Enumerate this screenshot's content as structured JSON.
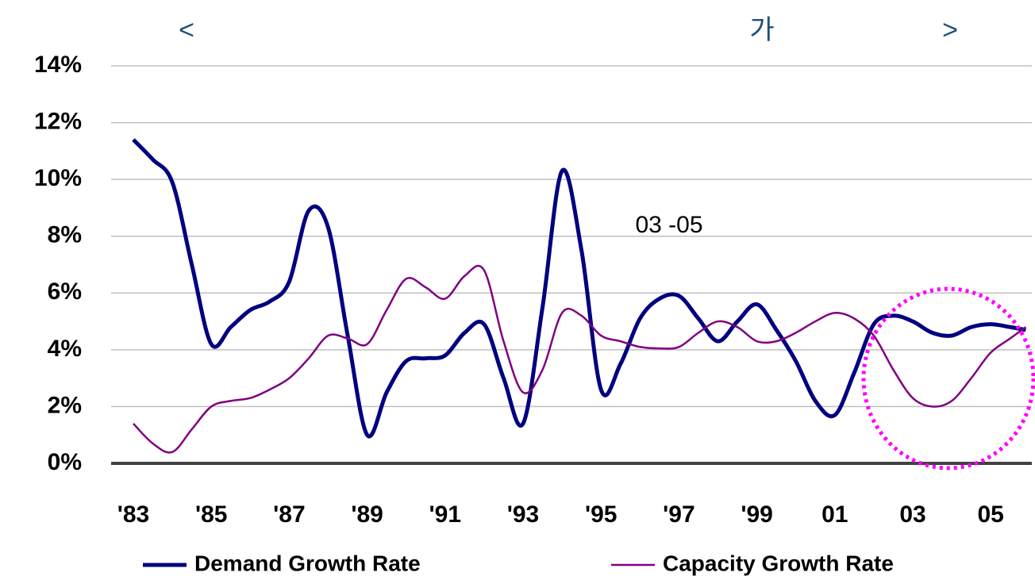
{
  "chart_data": {
    "type": "line",
    "title_parts": [
      "<",
      "가",
      ">"
    ],
    "annotation": "03 -05",
    "x": [
      1983,
      1983.5,
      1984,
      1984.5,
      1985,
      1985.5,
      1986,
      1986.5,
      1987,
      1987.5,
      1988,
      1988.5,
      1989,
      1989.5,
      1990,
      1990.5,
      1991,
      1991.5,
      1992,
      1992.5,
      1993,
      1993.5,
      1994,
      1994.5,
      1995,
      1995.5,
      1996,
      1996.5,
      1997,
      1997.5,
      1998,
      1998.5,
      1999,
      1999.5,
      2000,
      2000.5,
      2001,
      2001.5,
      2002,
      2002.5,
      2003,
      2003.5,
      2004,
      2004.5,
      2005,
      2005.5,
      2005.9
    ],
    "series": [
      {
        "name": "Demand Growth Rate",
        "color": "#000080",
        "values": [
          11.4,
          10.7,
          9.9,
          7.0,
          4.2,
          4.8,
          5.4,
          5.7,
          6.4,
          8.9,
          8.3,
          4.5,
          1.0,
          2.5,
          3.6,
          3.7,
          3.8,
          4.6,
          4.9,
          3.0,
          1.4,
          5.5,
          10.3,
          7.5,
          2.6,
          3.5,
          5.1,
          5.8,
          5.9,
          5.1,
          4.3,
          5.0,
          5.6,
          4.7,
          3.6,
          2.2,
          1.7,
          3.2,
          4.9,
          5.2,
          5.0,
          4.6,
          4.5,
          4.8,
          4.9,
          4.8,
          4.7
        ]
      },
      {
        "name": "Capacity Growth Rate",
        "color": "#800080",
        "values": [
          1.4,
          0.7,
          0.4,
          1.2,
          2.0,
          2.2,
          2.3,
          2.6,
          3.0,
          3.7,
          4.5,
          4.4,
          4.2,
          5.4,
          6.5,
          6.2,
          5.8,
          6.6,
          6.8,
          4.3,
          2.5,
          3.3,
          5.3,
          5.2,
          4.5,
          4.3,
          4.1,
          4.05,
          4.1,
          4.6,
          5.0,
          4.8,
          4.3,
          4.3,
          4.6,
          5.0,
          5.3,
          5.1,
          4.5,
          3.3,
          2.3,
          2.0,
          2.2,
          3.0,
          3.9,
          4.4,
          4.8
        ]
      }
    ],
    "xlim": [
      1983,
      2006
    ],
    "xticks": [
      {
        "value": 1983,
        "label": "'83"
      },
      {
        "value": 1985,
        "label": "'85"
      },
      {
        "value": 1987,
        "label": "'87"
      },
      {
        "value": 1989,
        "label": "'89"
      },
      {
        "value": 1991,
        "label": "'91"
      },
      {
        "value": 1993,
        "label": "'93"
      },
      {
        "value": 1995,
        "label": "'95"
      },
      {
        "value": 1997,
        "label": "'97"
      },
      {
        "value": 1999,
        "label": "'99"
      },
      {
        "value": 2001,
        "label": "01"
      },
      {
        "value": 2003,
        "label": "03"
      },
      {
        "value": 2005,
        "label": "05"
      }
    ],
    "ylim": [
      0,
      14
    ],
    "yticks": [
      {
        "value": 0,
        "label": "0%"
      },
      {
        "value": 2,
        "label": "2%"
      },
      {
        "value": 4,
        "label": "4%"
      },
      {
        "value": 6,
        "label": "6%"
      },
      {
        "value": 8,
        "label": "8%"
      },
      {
        "value": 10,
        "label": "10%"
      },
      {
        "value": 12,
        "label": "12%"
      },
      {
        "value": 14,
        "label": "14%"
      }
    ],
    "grid": true
  }
}
